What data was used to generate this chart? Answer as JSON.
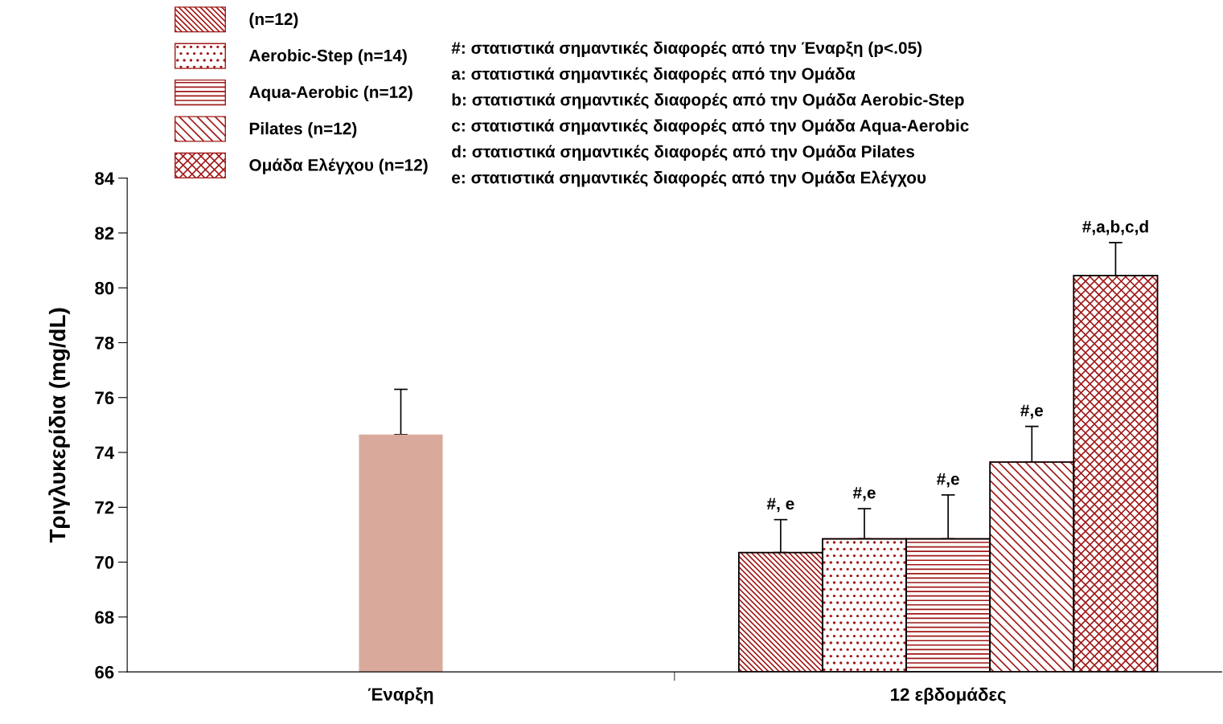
{
  "chart_data": {
    "type": "bar",
    "ylabel": "Τριγλυκερίδια (mg/dL)",
    "categories": [
      "Έναρξη",
      "12 εβδομάδες"
    ],
    "ylim": [
      66,
      84
    ],
    "yticks": [
      66,
      68,
      70,
      72,
      74,
      76,
      78,
      80,
      82,
      84
    ],
    "grid": false,
    "legend": "top left",
    "series": [
      {
        "color": "#d9aa9c",
        "values": [
          74.65,
          null
        ],
        "errors": [
          1.65,
          null
        ]
      },
      {
        "name": "(n=12)",
        "color": "#a01818",
        "values": [
          null,
          70.35
        ],
        "errors": [
          null,
          1.2
        ],
        "value_labels": [
          null,
          "#, e"
        ]
      },
      {
        "name": "Aerobic-Step (n=14)",
        "color": "#a01818",
        "values": [
          null,
          70.85
        ],
        "errors": [
          null,
          1.1
        ],
        "value_labels": [
          null,
          "#,e"
        ]
      },
      {
        "name": "Aqua-Aerobic (n=12)",
        "color": "#a01818",
        "values": [
          null,
          70.85
        ],
        "errors": [
          null,
          1.6
        ],
        "value_labels": [
          null,
          "#,e"
        ]
      },
      {
        "name": "Pilates (n=12)",
        "color": "#a01818",
        "values": [
          null,
          73.65
        ],
        "errors": [
          null,
          1.3
        ],
        "value_labels": [
          null,
          "#,e"
        ]
      },
      {
        "name": "Ομάδα Ελέγχου (n=12)",
        "color": "#a01818",
        "values": [
          null,
          80.45
        ],
        "errors": [
          null,
          1.2
        ],
        "value_labels": [
          null,
          "#,a,b,c,d"
        ]
      }
    ],
    "annotations": [
      "#: στατιστικά σημαντικές διαφορές από την Έναρξη (p<.05)",
      "a: στατιστικά σημαντικές διαφορές από την Ομάδα",
      "b: στατιστικά σημαντικές διαφορές από την Ομάδα Aerobic-Step",
      "c: στατιστικά σημαντικές διαφορές από την Ομάδα Aqua-Aerobic",
      "d: στατιστικά σημαντικές διαφορές από την Ομάδα Pilates",
      "e: στατιστικά σημαντικές διαφορές από την Ομάδα Ελέγχου"
    ]
  }
}
